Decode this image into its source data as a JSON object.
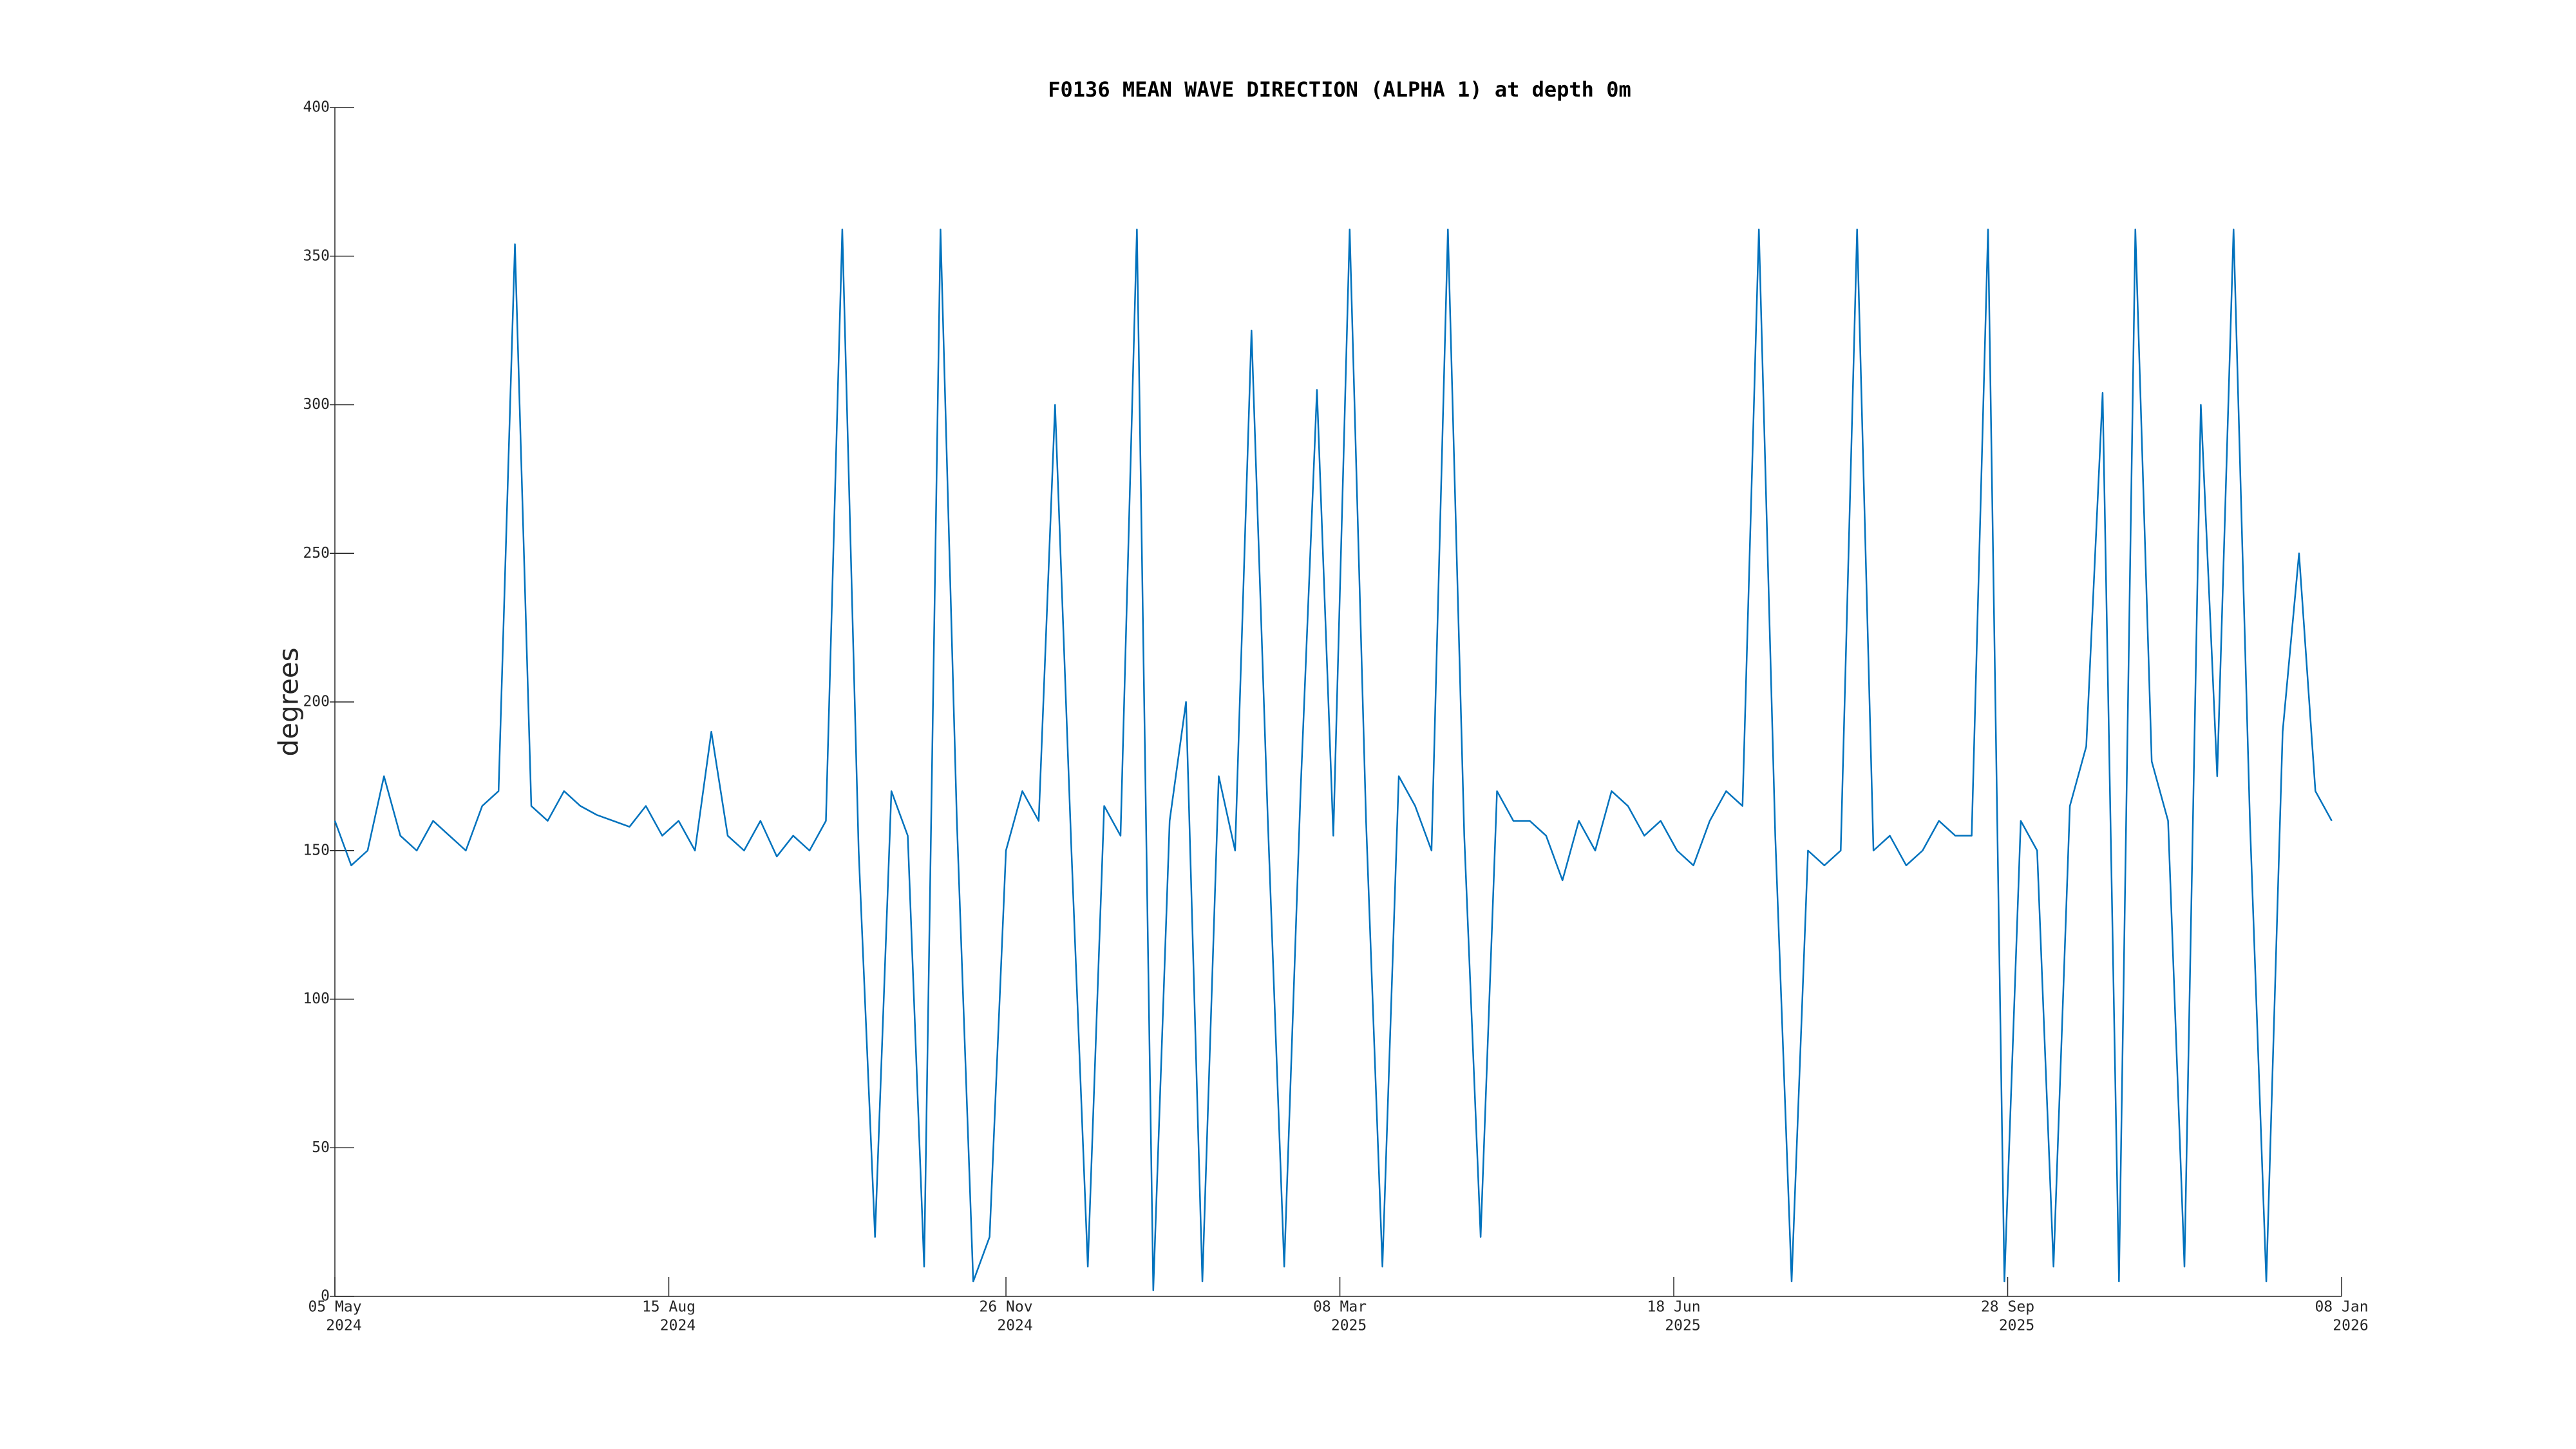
{
  "chart_data": {
    "type": "line",
    "title": "F0136 MEAN WAVE DIRECTION (ALPHA 1) at depth 0m",
    "y_label": "degrees",
    "color": "#0072bd",
    "x": [
      "2024-05-05",
      "2024-05-10",
      "2024-05-15",
      "2024-05-20",
      "2024-05-25",
      "2024-05-30",
      "2024-06-04",
      "2024-06-09",
      "2024-06-14",
      "2024-06-19",
      "2024-06-24",
      "2024-06-29",
      "2024-07-04",
      "2024-07-09",
      "2024-07-14",
      "2024-07-19",
      "2024-07-24",
      "2024-07-29",
      "2024-08-03",
      "2024-08-08",
      "2024-08-13",
      "2024-08-18",
      "2024-08-23",
      "2024-08-28",
      "2024-09-02",
      "2024-09-07",
      "2024-09-12",
      "2024-09-17",
      "2024-09-22",
      "2024-09-27",
      "2024-10-02",
      "2024-10-07",
      "2024-10-12",
      "2024-10-17",
      "2024-10-22",
      "2024-10-27",
      "2024-11-01",
      "2024-11-06",
      "2024-11-11",
      "2024-11-16",
      "2024-11-21",
      "2024-11-26",
      "2024-12-01",
      "2024-12-06",
      "2024-12-11",
      "2024-12-16",
      "2024-12-21",
      "2024-12-26",
      "2024-12-31",
      "2025-01-05",
      "2025-01-10",
      "2025-01-15",
      "2025-01-20",
      "2025-01-25",
      "2025-01-30",
      "2025-02-04",
      "2025-02-09",
      "2025-02-14",
      "2025-02-19",
      "2025-02-24",
      "2025-03-01",
      "2025-03-06",
      "2025-03-11",
      "2025-03-16",
      "2025-03-21",
      "2025-03-26",
      "2025-03-31",
      "2025-04-05",
      "2025-04-10",
      "2025-04-15",
      "2025-04-20",
      "2025-04-25",
      "2025-04-30",
      "2025-05-05",
      "2025-05-10",
      "2025-05-15",
      "2025-05-20",
      "2025-05-25",
      "2025-05-30",
      "2025-06-04",
      "2025-06-09",
      "2025-06-14",
      "2025-06-19",
      "2025-06-24",
      "2025-06-29",
      "2025-07-04",
      "2025-07-09",
      "2025-07-14",
      "2025-07-19",
      "2025-07-24",
      "2025-07-29",
      "2025-08-03",
      "2025-08-08",
      "2025-08-13",
      "2025-08-18",
      "2025-08-23",
      "2025-08-28",
      "2025-09-02",
      "2025-09-07",
      "2025-09-12",
      "2025-09-17",
      "2025-09-22",
      "2025-09-27",
      "2025-10-02",
      "2025-10-07",
      "2025-10-12",
      "2025-10-17",
      "2025-10-22",
      "2025-10-27",
      "2025-11-01",
      "2025-11-06",
      "2025-11-11",
      "2025-11-16",
      "2025-11-21",
      "2025-11-26",
      "2025-12-01",
      "2025-12-06",
      "2025-12-11",
      "2025-12-16",
      "2025-12-21",
      "2025-12-26",
      "2025-12-31",
      "2026-01-05"
    ],
    "values": [
      160,
      145,
      150,
      175,
      155,
      150,
      160,
      155,
      150,
      165,
      170,
      354,
      165,
      160,
      170,
      165,
      162,
      160,
      158,
      165,
      155,
      160,
      150,
      190,
      155,
      150,
      160,
      148,
      155,
      150,
      160,
      359,
      150,
      20,
      170,
      155,
      10,
      359,
      160,
      5,
      20,
      150,
      170,
      160,
      300,
      150,
      10,
      165,
      155,
      359,
      2,
      160,
      200,
      5,
      175,
      150,
      325,
      160,
      10,
      170,
      305,
      155,
      359,
      160,
      10,
      175,
      165,
      150,
      359,
      155,
      20,
      170,
      160,
      160,
      155,
      140,
      160,
      150,
      170,
      165,
      155,
      160,
      150,
      145,
      160,
      170,
      165,
      359,
      155,
      5,
      150,
      145,
      150,
      359,
      150,
      155,
      145,
      150,
      160,
      155,
      155,
      359,
      5,
      160,
      150,
      10,
      165,
      185,
      304,
      5,
      359,
      180,
      160,
      10,
      300,
      175,
      359,
      160,
      5,
      190,
      250,
      170,
      160
    ],
    "xlim": [
      "2024-05-05",
      "2026-01-08"
    ],
    "xticks": [
      {
        "value": "2024-05-05",
        "label": [
          "05 May",
          "2024"
        ]
      },
      {
        "value": "2024-08-15",
        "label": [
          "15 Aug",
          "2024"
        ]
      },
      {
        "value": "2024-11-26",
        "label": [
          "26 Nov",
          "2024"
        ]
      },
      {
        "value": "2025-03-08",
        "label": [
          "08 Mar",
          "2025"
        ]
      },
      {
        "value": "2025-06-18",
        "label": [
          "18 Jun",
          "2025"
        ]
      },
      {
        "value": "2025-09-28",
        "label": [
          "28 Sep",
          "2025"
        ]
      },
      {
        "value": "2026-01-08",
        "label": [
          "08 Jan",
          "2026"
        ]
      }
    ],
    "ylim": [
      0,
      400
    ],
    "yticks": [
      0,
      50,
      100,
      150,
      200,
      250,
      300,
      350,
      400
    ],
    "grid": false
  }
}
